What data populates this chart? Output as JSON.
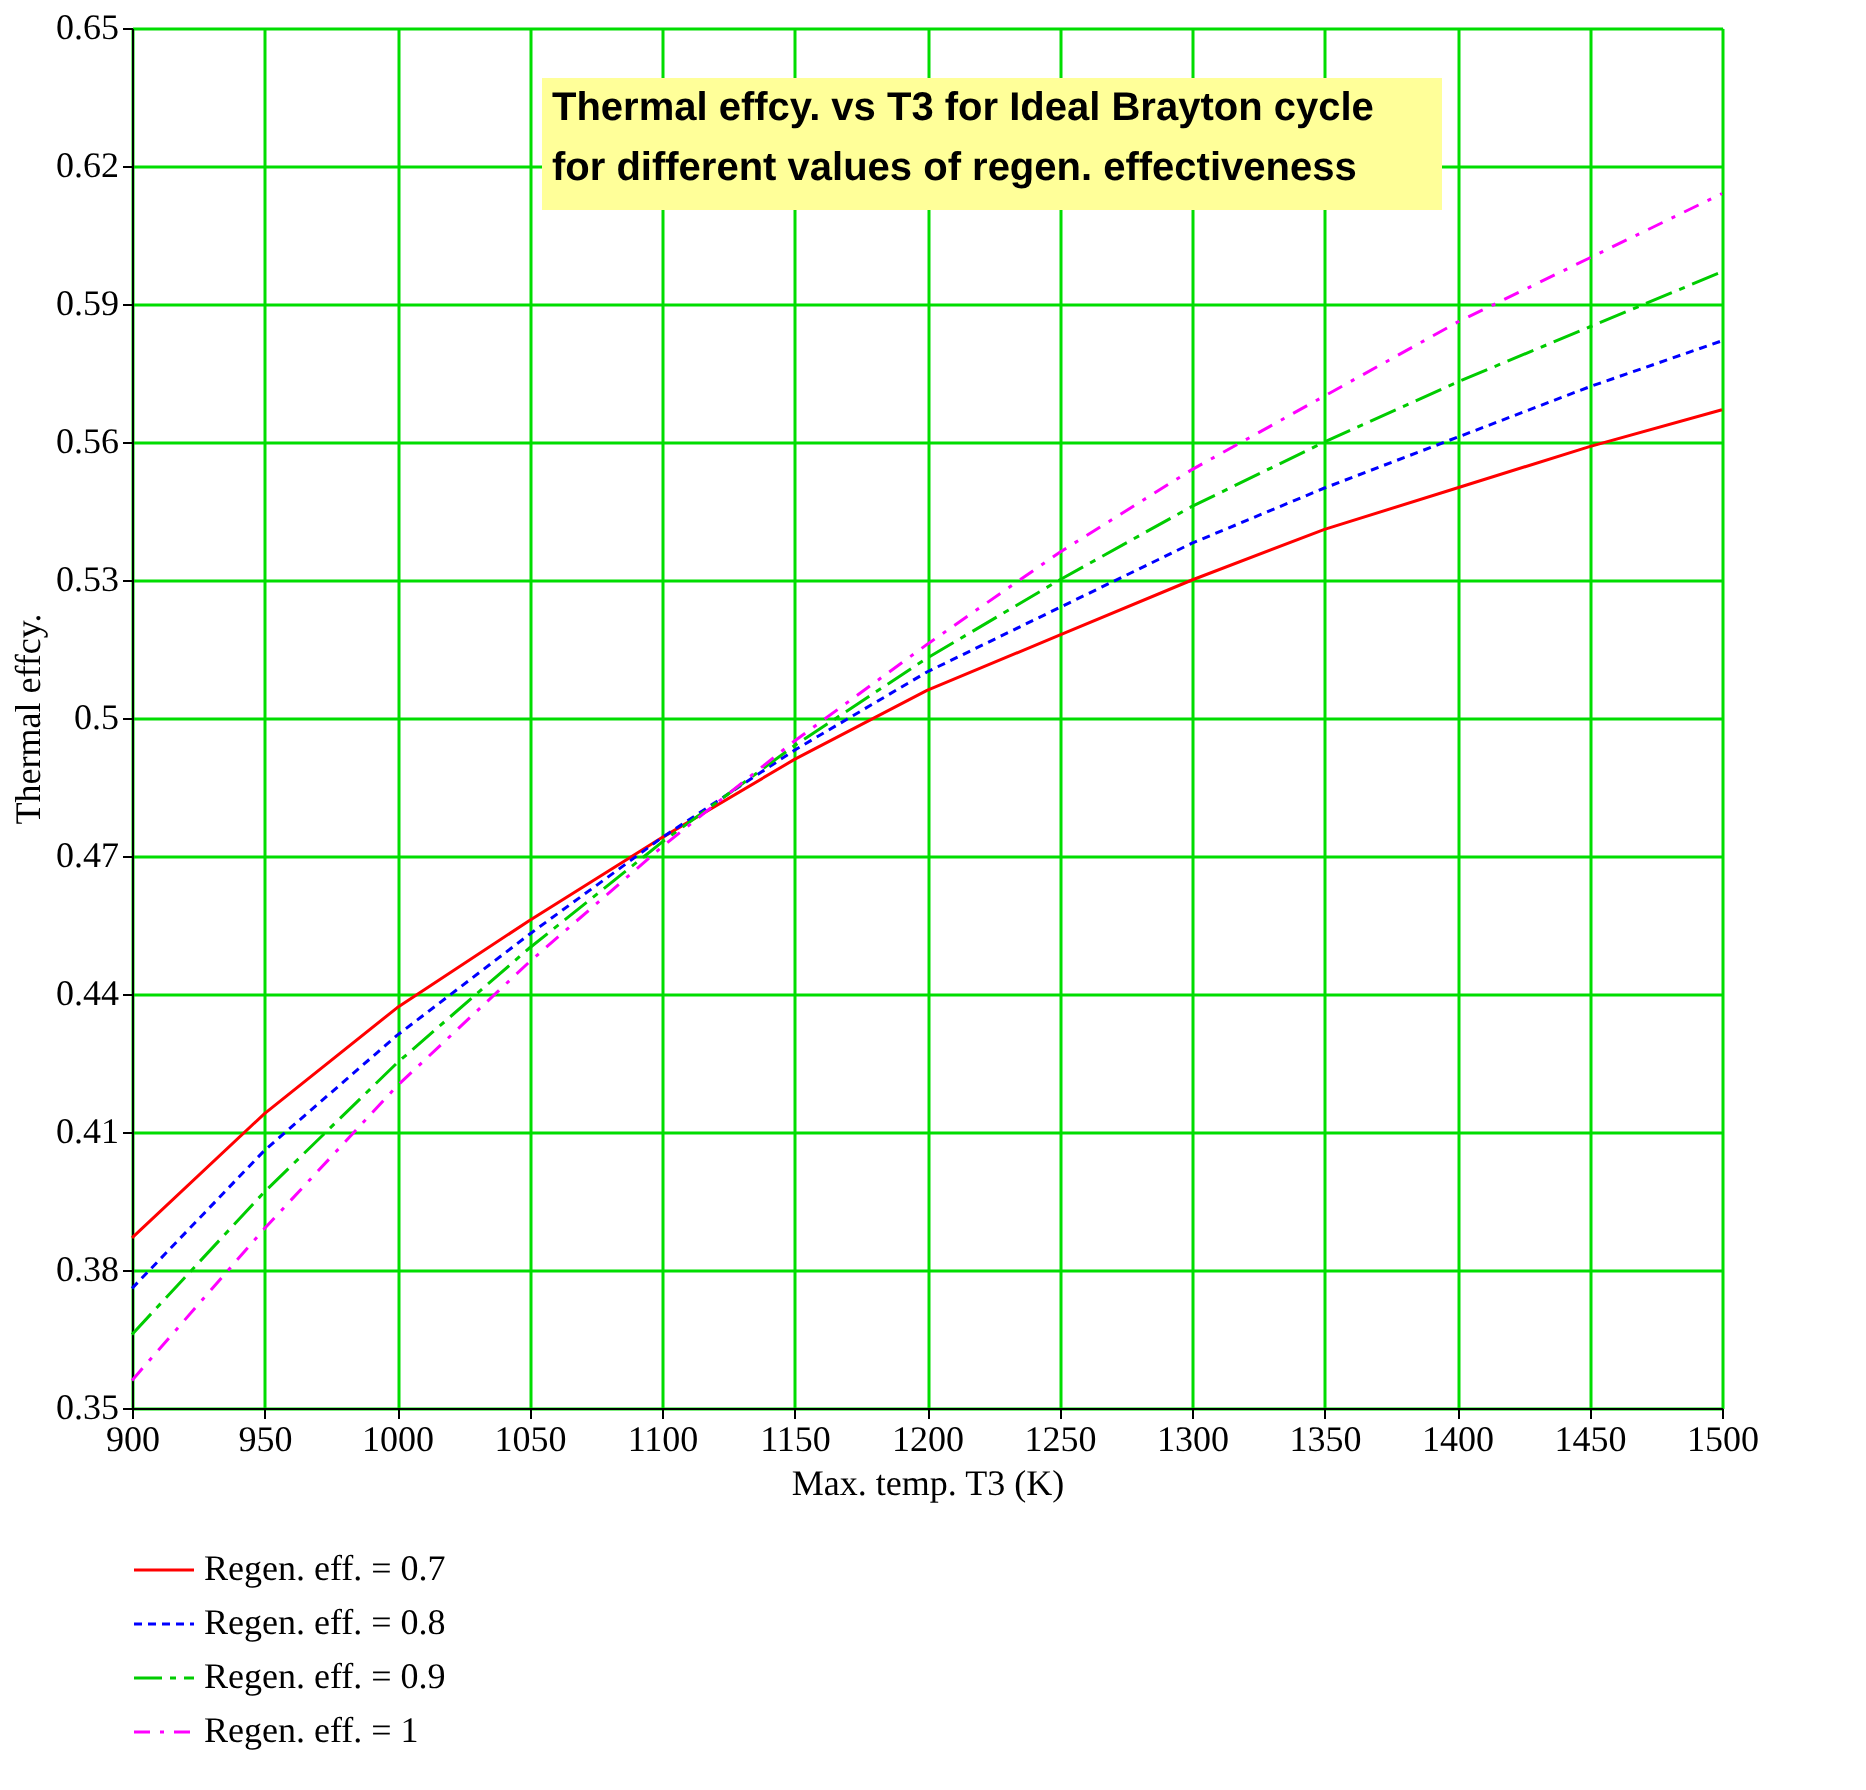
{
  "chart_data": {
    "type": "line",
    "title": "Thermal effcy. vs T3 for Ideal Brayton cycle",
    "subtitle": "for different values of regen. effectiveness",
    "xlabel": "Max. temp. T3 (K)",
    "ylabel": "Thermal effcy.",
    "x": [
      900,
      950,
      1000,
      1050,
      1100,
      1150,
      1200,
      1250,
      1300,
      1350,
      1400,
      1450,
      1500
    ],
    "series": [
      {
        "name": "Regen. eff. = 0.7",
        "color": "#ff0000",
        "line_style": "solid",
        "values": [
          0.387,
          0.414,
          0.437,
          0.456,
          0.474,
          0.491,
          0.506,
          0.518,
          0.53,
          0.541,
          0.55,
          0.559,
          0.567
        ]
      },
      {
        "name": "Regen. eff. = 0.8",
        "color": "#0000ff",
        "line_style": "dotted",
        "values": [
          0.376,
          0.406,
          0.431,
          0.453,
          0.474,
          0.493,
          0.51,
          0.524,
          0.538,
          0.55,
          0.561,
          0.572,
          0.582
        ]
      },
      {
        "name": "Regen. eff. = 0.9",
        "color": "#00cc00",
        "line_style": "dashed",
        "values": [
          0.366,
          0.397,
          0.425,
          0.45,
          0.473,
          0.494,
          0.513,
          0.53,
          0.546,
          0.56,
          0.573,
          0.585,
          0.597
        ]
      },
      {
        "name": "Regen. eff. = 1",
        "color": "#ff00ff",
        "line_style": "dashed",
        "values": [
          0.356,
          0.389,
          0.42,
          0.447,
          0.472,
          0.495,
          0.516,
          0.536,
          0.554,
          0.57,
          0.586,
          0.6,
          0.614
        ]
      }
    ],
    "xlim": [
      900,
      1500
    ],
    "xticks": [
      900,
      950,
      1000,
      1050,
      1100,
      1150,
      1200,
      1250,
      1300,
      1350,
      1400,
      1450,
      1500
    ],
    "ylim": [
      0.35,
      0.65
    ],
    "yticks": [
      0.35,
      0.38,
      0.41,
      0.44,
      0.47,
      0.5,
      0.53,
      0.56,
      0.59,
      0.62,
      0.65
    ],
    "grid": true,
    "legend": "bottom"
  }
}
